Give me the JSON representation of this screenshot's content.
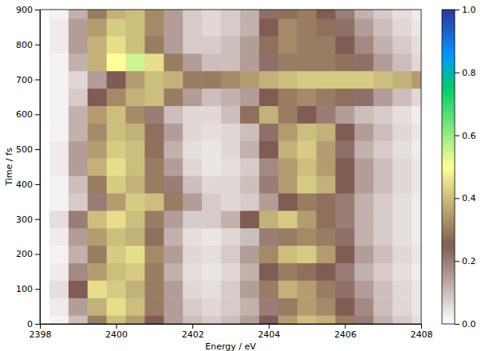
{
  "chart_data": {
    "type": "heatmap",
    "xlabel": "Energy / eV",
    "ylabel": "Time / fs",
    "x": [
      2398,
      2398.5,
      2399,
      2399.5,
      2400,
      2400.5,
      2401,
      2401.5,
      2402,
      2402.5,
      2403,
      2403.5,
      2404,
      2404.5,
      2405,
      2405.5,
      2406,
      2406.5,
      2407,
      2407.5,
      2408
    ],
    "y": [
      0,
      50,
      100,
      150,
      200,
      250,
      300,
      350,
      400,
      450,
      500,
      550,
      600,
      650,
      700,
      750,
      800,
      850,
      900
    ],
    "values": [
      [
        0.0,
        0.02,
        0.1,
        0.3,
        0.4,
        0.35,
        0.25,
        0.15,
        0.1,
        0.08,
        0.1,
        0.15,
        0.25,
        0.35,
        0.4,
        0.38,
        0.3,
        0.2,
        0.12,
        0.08,
        0.05
      ],
      [
        0.0,
        0.03,
        0.15,
        0.38,
        0.45,
        0.4,
        0.3,
        0.15,
        0.08,
        0.06,
        0.08,
        0.12,
        0.2,
        0.3,
        0.35,
        0.32,
        0.25,
        0.18,
        0.1,
        0.06,
        0.04
      ],
      [
        0.0,
        0.05,
        0.25,
        0.45,
        0.42,
        0.38,
        0.3,
        0.15,
        0.06,
        0.05,
        0.08,
        0.15,
        0.3,
        0.38,
        0.35,
        0.3,
        0.22,
        0.15,
        0.1,
        0.06,
        0.04
      ],
      [
        0.0,
        0.03,
        0.18,
        0.35,
        0.4,
        0.42,
        0.3,
        0.12,
        0.05,
        0.04,
        0.06,
        0.12,
        0.25,
        0.3,
        0.28,
        0.25,
        0.2,
        0.12,
        0.08,
        0.05,
        0.03
      ],
      [
        0.0,
        0.02,
        0.12,
        0.3,
        0.42,
        0.45,
        0.32,
        0.15,
        0.06,
        0.05,
        0.08,
        0.15,
        0.32,
        0.4,
        0.42,
        0.35,
        0.25,
        0.15,
        0.1,
        0.06,
        0.04
      ],
      [
        0.0,
        0.03,
        0.15,
        0.35,
        0.4,
        0.38,
        0.28,
        0.12,
        0.05,
        0.04,
        0.06,
        0.1,
        0.2,
        0.3,
        0.32,
        0.3,
        0.22,
        0.12,
        0.08,
        0.05,
        0.03
      ],
      [
        0.0,
        0.05,
        0.2,
        0.4,
        0.45,
        0.4,
        0.3,
        0.15,
        0.08,
        0.08,
        0.12,
        0.25,
        0.38,
        0.42,
        0.35,
        0.28,
        0.2,
        0.12,
        0.08,
        0.05,
        0.03
      ],
      [
        0.0,
        0.02,
        0.08,
        0.2,
        0.35,
        0.42,
        0.4,
        0.3,
        0.15,
        0.08,
        0.06,
        0.08,
        0.15,
        0.25,
        0.3,
        0.28,
        0.2,
        0.12,
        0.08,
        0.05,
        0.03
      ],
      [
        0.0,
        0.02,
        0.1,
        0.3,
        0.42,
        0.38,
        0.3,
        0.2,
        0.1,
        0.06,
        0.06,
        0.1,
        0.2,
        0.35,
        0.42,
        0.38,
        0.25,
        0.15,
        0.1,
        0.06,
        0.04
      ],
      [
        0.0,
        0.03,
        0.15,
        0.38,
        0.45,
        0.4,
        0.3,
        0.15,
        0.06,
        0.04,
        0.05,
        0.08,
        0.18,
        0.35,
        0.4,
        0.35,
        0.25,
        0.15,
        0.1,
        0.06,
        0.04
      ],
      [
        0.0,
        0.03,
        0.15,
        0.35,
        0.42,
        0.4,
        0.28,
        0.12,
        0.05,
        0.04,
        0.06,
        0.12,
        0.25,
        0.38,
        0.42,
        0.35,
        0.22,
        0.12,
        0.08,
        0.05,
        0.03
      ],
      [
        0.0,
        0.02,
        0.12,
        0.32,
        0.4,
        0.38,
        0.28,
        0.15,
        0.06,
        0.05,
        0.06,
        0.1,
        0.22,
        0.35,
        0.4,
        0.38,
        0.25,
        0.15,
        0.1,
        0.06,
        0.04
      ],
      [
        0.0,
        0.02,
        0.12,
        0.35,
        0.4,
        0.32,
        0.2,
        0.1,
        0.06,
        0.06,
        0.1,
        0.28,
        0.38,
        0.3,
        0.25,
        0.2,
        0.15,
        0.1,
        0.08,
        0.05,
        0.03
      ],
      [
        0.0,
        0.02,
        0.08,
        0.25,
        0.32,
        0.38,
        0.4,
        0.3,
        0.15,
        0.1,
        0.12,
        0.15,
        0.25,
        0.3,
        0.32,
        0.3,
        0.28,
        0.22,
        0.15,
        0.1,
        0.06
      ],
      [
        0.0,
        0.02,
        0.06,
        0.15,
        0.25,
        0.35,
        0.4,
        0.38,
        0.3,
        0.3,
        0.32,
        0.35,
        0.38,
        0.4,
        0.42,
        0.42,
        0.42,
        0.42,
        0.4,
        0.38,
        0.35
      ],
      [
        0.0,
        0.02,
        0.12,
        0.38,
        0.5,
        0.55,
        0.45,
        0.3,
        0.15,
        0.1,
        0.1,
        0.15,
        0.22,
        0.3,
        0.3,
        0.3,
        0.28,
        0.22,
        0.15,
        0.1,
        0.06
      ],
      [
        0.0,
        0.03,
        0.15,
        0.38,
        0.45,
        0.4,
        0.3,
        0.15,
        0.08,
        0.08,
        0.1,
        0.15,
        0.28,
        0.32,
        0.3,
        0.3,
        0.25,
        0.18,
        0.12,
        0.08,
        0.05
      ],
      [
        0.0,
        0.03,
        0.15,
        0.35,
        0.42,
        0.4,
        0.32,
        0.15,
        0.08,
        0.06,
        0.08,
        0.12,
        0.25,
        0.32,
        0.3,
        0.28,
        0.22,
        0.15,
        0.1,
        0.06,
        0.04
      ],
      [
        0.0,
        0.02,
        0.12,
        0.3,
        0.38,
        0.4,
        0.32,
        0.15,
        0.08,
        0.06,
        0.08,
        0.12,
        0.22,
        0.28,
        0.3,
        0.25,
        0.2,
        0.12,
        0.08,
        0.05,
        0.03
      ]
    ],
    "xlim": [
      2398,
      2408
    ],
    "xticks": [
      2398,
      2400,
      2402,
      2404,
      2406,
      2408
    ],
    "ylim": [
      0,
      900
    ],
    "yticks": [
      0,
      100,
      200,
      300,
      400,
      500,
      600,
      700,
      800,
      900
    ],
    "zlim": [
      0,
      1
    ],
    "zticks": [
      {
        "value": 0,
        "label": "0.0"
      },
      {
        "value": 0.2,
        "label": "0.2"
      },
      {
        "value": 0.4,
        "label": "0.4"
      },
      {
        "value": 0.6,
        "label": "0.6"
      },
      {
        "value": 0.8,
        "label": "0.8"
      },
      {
        "value": 1,
        "label": "1.0"
      }
    ]
  }
}
